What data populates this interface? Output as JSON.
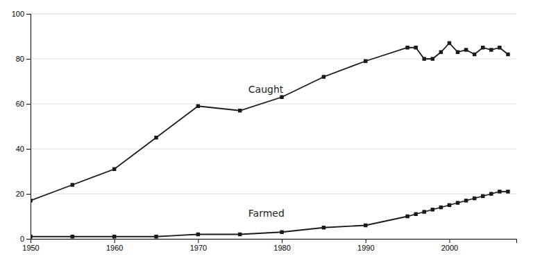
{
  "chart_data": {
    "type": "line",
    "x": [
      1950,
      1955,
      1960,
      1965,
      1970,
      1975,
      1980,
      1985,
      1990,
      1995,
      1996,
      1997,
      1998,
      1999,
      2000,
      2001,
      2002,
      2003,
      2004,
      2005,
      2006,
      2007
    ],
    "series": [
      {
        "color": "#1a1a1a",
        "marker": "square",
        "values": [
          17,
          24,
          31,
          45,
          59,
          57,
          63,
          72,
          79,
          85,
          85,
          80,
          80,
          83,
          87,
          83,
          84,
          82,
          85,
          84,
          85,
          82
        ]
      },
      {
        "color": "#1a1a1a",
        "marker": "square",
        "values": [
          1,
          1,
          1,
          1,
          2,
          2,
          3,
          5,
          6,
          10,
          11,
          12,
          13,
          14,
          15,
          16,
          17,
          18,
          19,
          20,
          21,
          21
        ]
      }
    ],
    "annotations": [
      {
        "text": "Caught",
        "x": 1976,
        "y": 65
      },
      {
        "text": "Farmed",
        "x": 1976,
        "y": 10
      }
    ],
    "xlim": [
      1950,
      2008
    ],
    "ylim": [
      0,
      100
    ],
    "xticks": [
      1950,
      1960,
      1970,
      1980,
      1990,
      2000
    ],
    "yticks": [
      0,
      20,
      40,
      60,
      80,
      100
    ],
    "grid": true
  }
}
